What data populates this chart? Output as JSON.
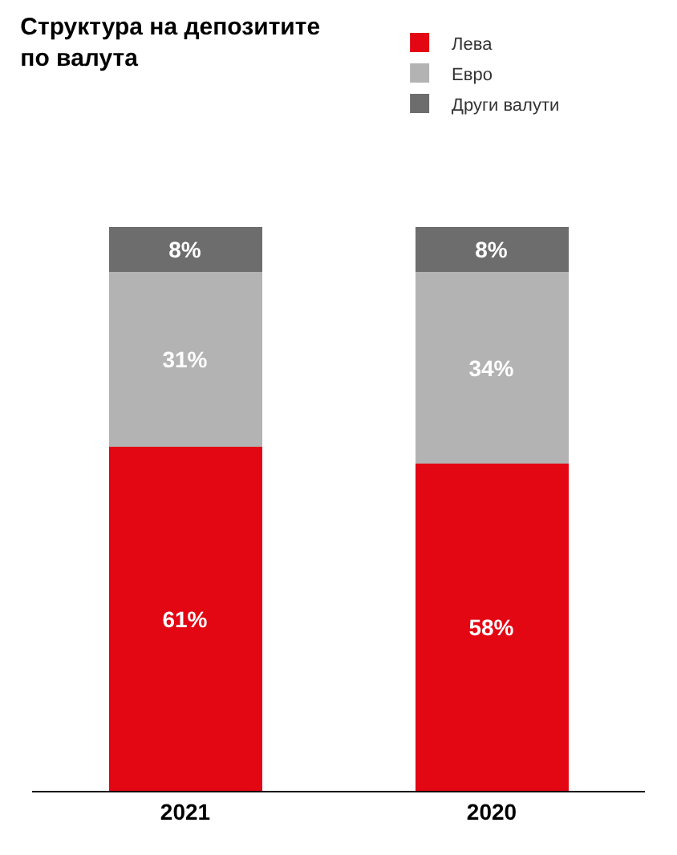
{
  "chart_data": {
    "type": "bar",
    "title": "Структура на депозитите\nпо валута",
    "categories": [
      "2021",
      "2020"
    ],
    "stacked": true,
    "legend": "top right",
    "series": [
      {
        "name": "Лева",
        "color": "#e30613",
        "values": [
          61,
          58
        ],
        "value_labels": [
          "61%",
          "58%"
        ]
      },
      {
        "name": "Евро",
        "color": "#b3b3b3",
        "values": [
          31,
          34
        ],
        "value_labels": [
          "31%",
          "34%"
        ]
      },
      {
        "name": "Други валути",
        "color": "#6d6d6d",
        "values": [
          8,
          8
        ],
        "value_labels": [
          "8%",
          "8%"
        ]
      }
    ]
  }
}
